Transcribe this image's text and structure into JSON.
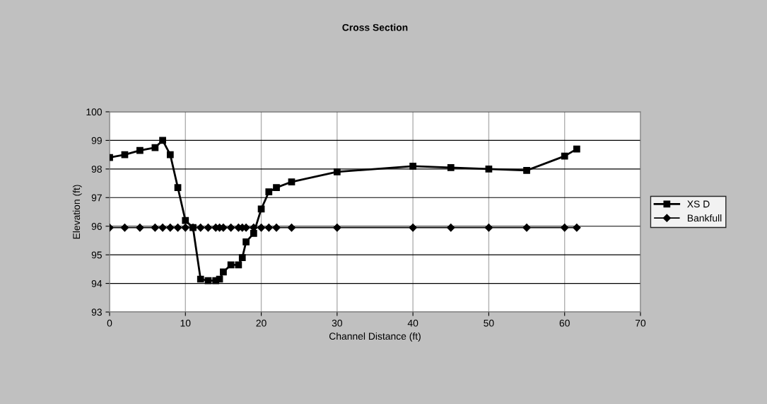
{
  "chart_data": {
    "type": "line",
    "title": "Cross Section",
    "xlabel": "Channel Distance (ft)",
    "ylabel": "Elevation (ft)",
    "xlim": [
      0,
      70
    ],
    "xticks": [
      0,
      10,
      20,
      30,
      40,
      50,
      60,
      70
    ],
    "ylim": [
      93,
      100
    ],
    "yticks": [
      93,
      94,
      95,
      96,
      97,
      98,
      99,
      100
    ],
    "grid": true,
    "legend": "right",
    "series": [
      {
        "name": "XS D",
        "color": "#000000",
        "marker": "square",
        "x": [
          0,
          2,
          4,
          6,
          7,
          8,
          9,
          10,
          11,
          12,
          13,
          14,
          14.5,
          15,
          16,
          17,
          17.5,
          18,
          19,
          20,
          21,
          22,
          24,
          30,
          40,
          45,
          50,
          55,
          60,
          61.6
        ],
        "values": [
          98.4,
          98.5,
          98.65,
          98.75,
          99.0,
          98.5,
          97.35,
          96.2,
          95.95,
          94.15,
          94.1,
          94.1,
          94.15,
          94.4,
          94.65,
          94.65,
          94.9,
          95.45,
          95.75,
          96.6,
          97.2,
          97.35,
          97.55,
          97.9,
          98.1,
          98.05,
          98.0,
          97.95,
          98.45,
          98.7
        ]
      },
      {
        "name": "Bankfull",
        "color": "#000000",
        "marker": "diamond",
        "x": [
          0,
          2,
          4,
          6,
          7,
          8,
          9,
          10,
          11,
          12,
          13,
          14,
          14.5,
          15,
          16,
          17,
          17.5,
          18,
          19,
          20,
          21,
          22,
          24,
          30,
          40,
          45,
          50,
          55,
          60,
          61.6
        ],
        "values": [
          95.95,
          95.95,
          95.95,
          95.95,
          95.95,
          95.95,
          95.95,
          95.95,
          95.95,
          95.95,
          95.95,
          95.95,
          95.95,
          95.95,
          95.95,
          95.95,
          95.95,
          95.95,
          95.95,
          95.95,
          95.95,
          95.95,
          95.95,
          95.95,
          95.95,
          95.95,
          95.95,
          95.95,
          95.95,
          95.95
        ]
      }
    ]
  }
}
